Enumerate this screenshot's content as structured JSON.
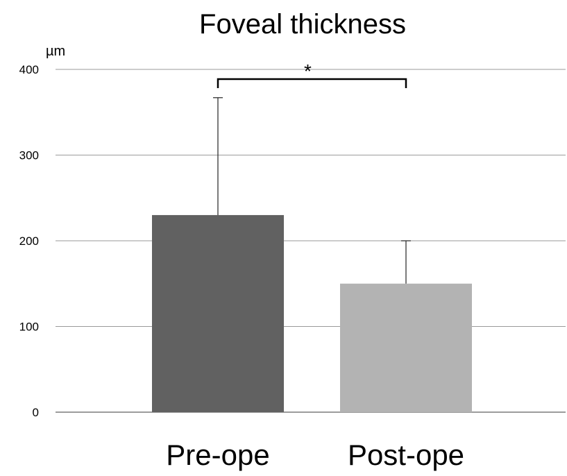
{
  "chart_data": {
    "type": "bar",
    "title": "Foveal thickness",
    "ylabel": "µm",
    "xlabel": "",
    "ylim": [
      0,
      400
    ],
    "yticks": [
      0,
      100,
      200,
      300,
      400
    ],
    "grid": true,
    "categories": [
      "Pre-ope",
      "Post-ope"
    ],
    "values": [
      230,
      150
    ],
    "error_upper": [
      137,
      50
    ],
    "colors": [
      "#616161",
      "#b3b3b3"
    ],
    "significance": {
      "from": "Pre-ope",
      "to": "Post-ope",
      "label": "*"
    }
  }
}
